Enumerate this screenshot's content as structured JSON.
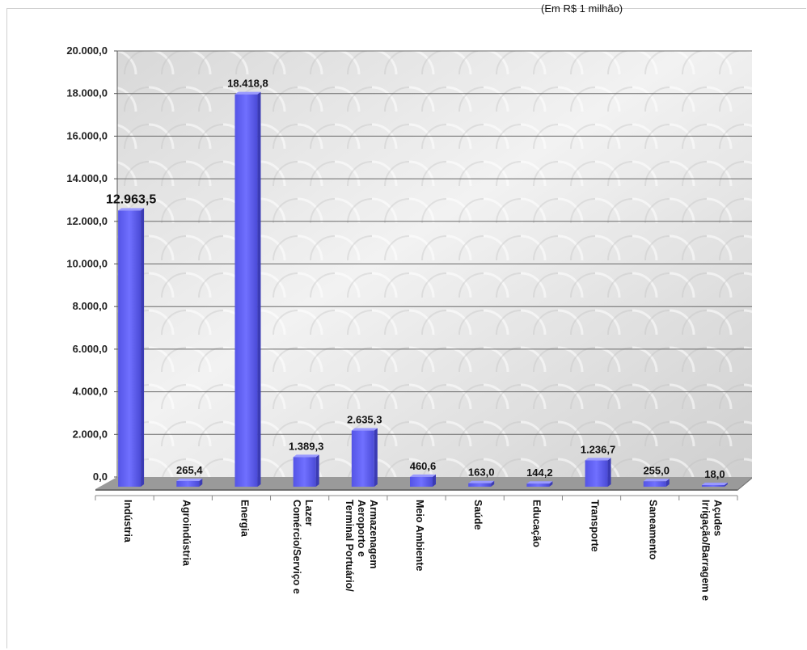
{
  "unit_note": "(Em R$ 1 milhão)",
  "chart_data": {
    "type": "bar",
    "title": "",
    "xlabel": "",
    "ylabel": "",
    "ylim": [
      0,
      20000
    ],
    "yticks": [
      "0,0",
      "2.000,0",
      "4.000,0",
      "6.000,0",
      "8.000,0",
      "10.000,0",
      "12.000,0",
      "14.000,0",
      "16.000,0",
      "18.000,0",
      "20.000,0"
    ],
    "grid": true,
    "categories": [
      [
        "Indústria"
      ],
      [
        "Agroindústria"
      ],
      [
        "Energia"
      ],
      [
        "Comércio/Serviço e",
        "Lazer"
      ],
      [
        "Terminal Portuário/",
        "Aeroporto e",
        "Armazenagem"
      ],
      [
        "Meio Ambiente"
      ],
      [
        "Saúde"
      ],
      [
        "Educação"
      ],
      [
        "Transporte"
      ],
      [
        "Saneamento"
      ],
      [
        "Irrigação/Barragem e",
        "Açudes"
      ]
    ],
    "values": [
      12963.5,
      265.4,
      18418.8,
      1389.3,
      2635.3,
      460.6,
      163.0,
      144.2,
      1236.7,
      255.0,
      18.0
    ],
    "value_labels": [
      "12.963,5",
      "265,4",
      "18.418,8",
      "1.389,3",
      "2.635,3",
      "460,6",
      "163,0",
      "144,2",
      "1.236,7",
      "255,0",
      "18,0"
    ],
    "bar_color": "#6b6bf5"
  }
}
